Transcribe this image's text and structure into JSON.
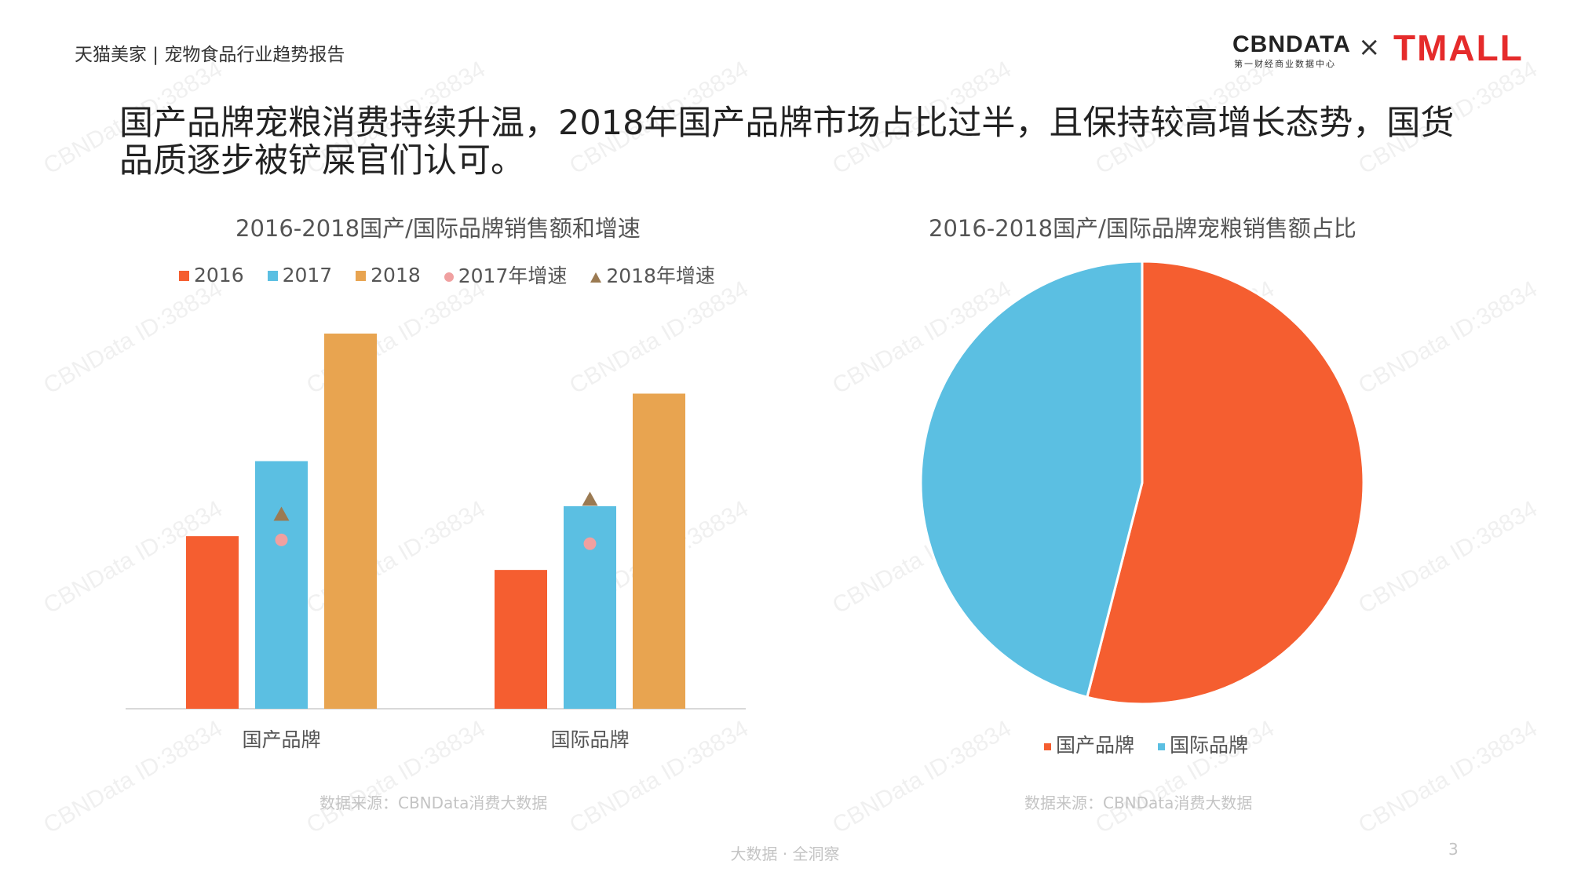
{
  "header": {
    "report_title": "天猫美家 | 宠物食品行业趋势报告",
    "logo_cbn": "CBNDATA",
    "logo_cbn_sub": "第一财经商业数据中心",
    "logo_times": "×",
    "logo_tmall": "TMALL"
  },
  "headline": "国产品牌宠粮消费持续升温，2018年国产品牌市场占比过半，且保持较高增长态势，国货品质逐步被铲屎官们认可。",
  "watermark": "CBNData ID:38834",
  "footer": {
    "tagline": "大数据 · 全洞察",
    "page_number": "3"
  },
  "colors": {
    "2016": "#f55e30",
    "2017": "#5bbfe2",
    "2018": "#e8a450",
    "growth_2017": "#f0a0a0",
    "growth_2018": "#9b7a52",
    "domestic": "#f55e30",
    "international": "#5bbfe2"
  },
  "left_chart": {
    "source": "数据来源：CBNData消费大数据"
  },
  "right_chart": {
    "source": "数据来源：CBNData消费大数据"
  },
  "chart_data": [
    {
      "type": "bar",
      "title": "2016-2018国产/国际品牌销售额和增速",
      "categories": [
        "国产品牌",
        "国际品牌"
      ],
      "series": [
        {
          "name": "2016",
          "values": [
            46,
            37
          ]
        },
        {
          "name": "2017",
          "values": [
            66,
            54
          ]
        },
        {
          "name": "2018",
          "values": [
            100,
            84
          ]
        }
      ],
      "growth_series": [
        {
          "name": "2017年增速",
          "marker": "circle",
          "values": [
            45,
            44
          ]
        },
        {
          "name": "2018年增速",
          "marker": "triangle",
          "values": [
            52,
            56
          ]
        }
      ],
      "ylim": [
        0,
        100
      ],
      "axis_values_shown": false,
      "legend_position": "top"
    },
    {
      "type": "pie",
      "title": "2016-2018国产/国际品牌宠粮销售额占比",
      "labels": [
        "国产品牌",
        "国际品牌"
      ],
      "values": [
        54,
        46
      ],
      "legend_position": "bottom"
    }
  ]
}
